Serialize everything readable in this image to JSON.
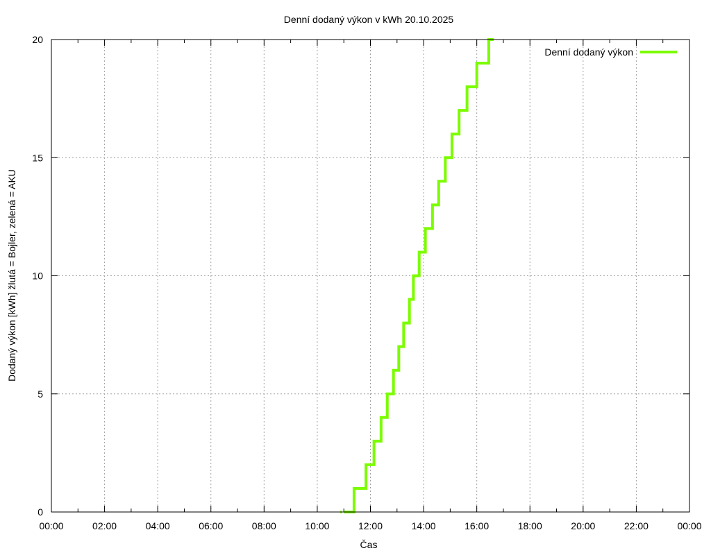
{
  "chart_data": {
    "type": "line",
    "step": true,
    "title": "Denní dodaný výkon v kWh 20.10.2025",
    "xlabel": "Čas",
    "ylabel": "Dodaný výkon [kWh]  žlutá = Bojler, zelená = AKU",
    "xlim": [
      "00:00",
      "24:00"
    ],
    "ylim": [
      0,
      20
    ],
    "grid": true,
    "legend_position": "top-right",
    "x_ticks": [
      "00:00",
      "02:00",
      "04:00",
      "06:00",
      "08:00",
      "10:00",
      "12:00",
      "14:00",
      "16:00",
      "18:00",
      "20:00",
      "22:00",
      "00:00"
    ],
    "y_ticks": [
      0,
      5,
      10,
      15,
      20
    ],
    "series": [
      {
        "name": "Denní dodaný výkon",
        "color": "#7cfc00",
        "x": [
          "10:52",
          "10:55",
          "11:00",
          "11:23",
          "11:50",
          "12:08",
          "12:24",
          "12:38",
          "12:52",
          "13:04",
          "13:15",
          "13:28",
          "13:37",
          "13:50",
          "14:04",
          "14:20",
          "14:34",
          "14:49",
          "15:04",
          "15:20",
          "15:38",
          "16:00",
          "16:27",
          "16:38"
        ],
        "y": [
          0,
          0,
          0,
          1,
          2,
          3,
          4,
          5,
          6,
          7,
          8,
          9,
          10,
          11,
          12,
          13,
          14,
          15,
          16,
          17,
          18,
          19,
          20,
          20
        ]
      }
    ]
  },
  "colors": {
    "series": "#7cfc00",
    "grid": "#a0a0a0",
    "axis": "#000000"
  }
}
